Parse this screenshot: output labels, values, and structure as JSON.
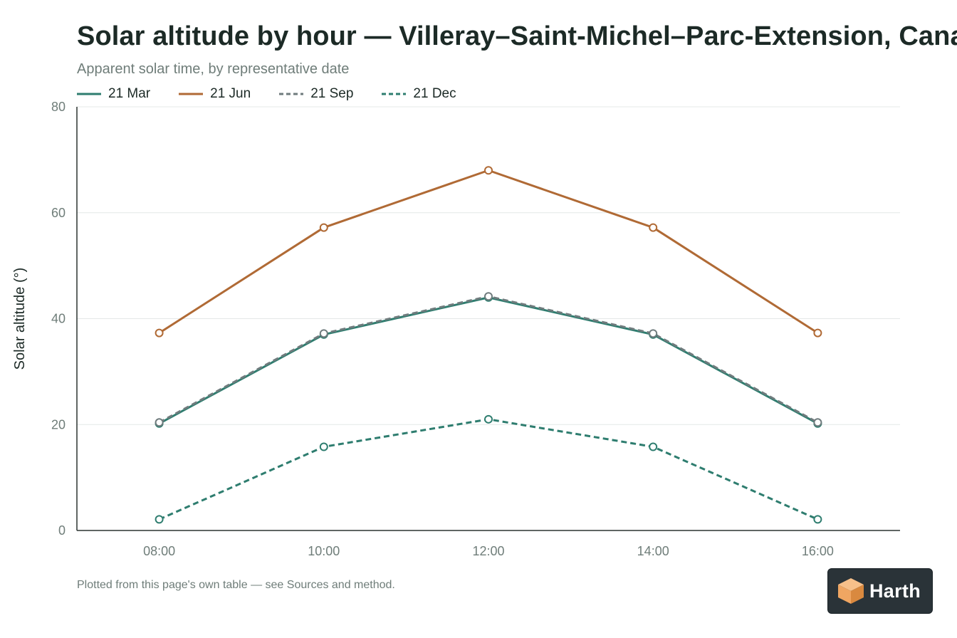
{
  "header": {
    "title": "Solar altitude by hour — Villeray–Saint-Michel–Parc-Extension, Canada",
    "subtitle": "Apparent solar time, by representative date"
  },
  "legend": {
    "items": [
      {
        "label": "21 Mar",
        "color": "#2e7d6f",
        "dash": "solid"
      },
      {
        "label": "21 Jun",
        "color": "#b06a35",
        "dash": "solid"
      },
      {
        "label": "21 Sep",
        "color": "#6f7b7d",
        "dash": "dashed"
      },
      {
        "label": "21 Dec",
        "color": "#2e7d6f",
        "dash": "dashed"
      }
    ]
  },
  "chart_data": {
    "type": "line",
    "title": "Solar altitude by hour — Villeray–Saint-Michel–Parc-Extension, Canada",
    "subtitle": "Apparent solar time, by representative date",
    "xlabel": "",
    "ylabel": "Solar altitude (°)",
    "x": [
      "08:00",
      "10:00",
      "12:00",
      "14:00",
      "16:00"
    ],
    "ylim": [
      0,
      80
    ],
    "yticks": [
      0,
      20,
      40,
      60,
      80
    ],
    "grid": true,
    "legend_position": "top-left",
    "series": [
      {
        "name": "21 Mar",
        "values": [
          20.2,
          37.0,
          44.0,
          37.0,
          20.2
        ],
        "color": "#2e7d6f",
        "dash": "solid"
      },
      {
        "name": "21 Jun",
        "values": [
          37.3,
          57.2,
          68.0,
          57.2,
          37.3
        ],
        "color": "#b06a35",
        "dash": "solid"
      },
      {
        "name": "21 Sep",
        "values": [
          20.4,
          37.2,
          44.2,
          37.2,
          20.4
        ],
        "color": "#6f7b7d",
        "dash": "dashed"
      },
      {
        "name": "21 Dec",
        "values": [
          2.1,
          15.8,
          21.0,
          15.8,
          2.1
        ],
        "color": "#2e7d6f",
        "dash": "dashed"
      }
    ]
  },
  "footer": {
    "note": "Plotted from this page's own table — see Sources and method."
  },
  "brand": {
    "name": "Harth",
    "logo_icon": "isometric-cube-icon",
    "logo_color": "#f0a662"
  }
}
